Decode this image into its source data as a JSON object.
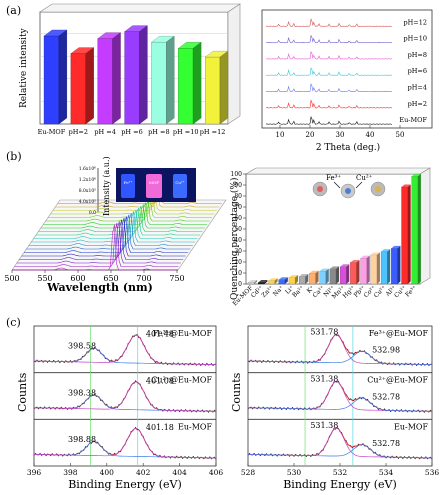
{
  "panels": {
    "a": {
      "label": "(a)",
      "bar": {
        "ylabel": "Relative intensity",
        "categories": [
          "Eu-MOF",
          "pH=2",
          "pH =4",
          "pH =6",
          "pH =8",
          "pH =10",
          "pH =12"
        ],
        "values": [
          1.0,
          0.8,
          0.97,
          1.05,
          0.93,
          0.86,
          0.76
        ],
        "colors": [
          "#2f3fff",
          "#ff2a2a",
          "#c43cff",
          "#9a3cff",
          "#9affe0",
          "#33ff33",
          "#f2f23a"
        ]
      },
      "xrd": {
        "xlabel": "2 Theta (deg.)",
        "xticks": [
          "10",
          "20",
          "30",
          "40",
          "50"
        ],
        "traces": [
          "pH=12",
          "pH=10",
          "pH=8",
          "pH=6",
          "pH=4",
          "pH=2",
          "Eu-MOF"
        ],
        "trace_colors": [
          "#d45555",
          "#6b5fd0",
          "#e85ad4",
          "#39c9d4",
          "#6a78ff",
          "#ff2a2a",
          "#111111"
        ]
      }
    },
    "b": {
      "label": "(b)",
      "spectra": {
        "xlabel": "Wavelength (nm)",
        "xticks": [
          "500",
          "550",
          "600",
          "650",
          "700",
          "750"
        ],
        "zlabel": "Intensity (a.u.)",
        "zticks": [
          "0.0",
          "4.0x10⁵",
          "8.0x10⁵",
          "1.2x10⁶",
          "1.6x10⁶"
        ],
        "inset": [
          "Fe³⁺",
          "MOF",
          "Cu²⁺"
        ]
      },
      "quench": {
        "ylabel": "Quenching percentage (%)",
        "yticks": [
          "0",
          "10",
          "20",
          "30",
          "40",
          "50",
          "60",
          "70",
          "80",
          "90",
          "100"
        ],
        "ylim": [
          0,
          100
        ],
        "categories": [
          "Eu-MOF",
          "Cd²⁺",
          "Zn²⁺",
          "Na⁺",
          "Li⁺",
          "Ba²⁺",
          "K⁺",
          "Ca²⁺",
          "Ni²⁺",
          "Mn²⁺",
          "Hg²⁺",
          "Pb²⁺",
          "Co²⁺",
          "Cu²⁺",
          "Al³⁺",
          "Cu²⁺",
          "Fe³⁺"
        ],
        "values": [
          0,
          1,
          3,
          4,
          6,
          7,
          10,
          12,
          14,
          16,
          20,
          24,
          27,
          30,
          33,
          90,
          100
        ],
        "colors": [
          "#d0d0d0",
          "#222222",
          "#ffd24d",
          "#3b6cff",
          "#ffd24d",
          "#aaaaaa",
          "#ffb070",
          "#7ed0ff",
          "#8a8a8a",
          "#d94fd9",
          "#ff5a5a",
          "#ff9ee6",
          "#ffd0a0",
          "#4dc3ff",
          "#3b5cff",
          "#ff2a2a",
          "#33ee33"
        ],
        "inset": [
          "Fe³⁺",
          "Cu²⁺"
        ]
      }
    },
    "c": {
      "label": "(c)",
      "fe2p": {
        "xlabel": "Binding Energy (eV)",
        "ylabel": "Counts",
        "xticks": [
          "396",
          "398",
          "400",
          "402",
          "404",
          "406"
        ],
        "traces": [
          {
            "name": "Fe³⁺@Eu-MOF",
            "peak1": "398.58",
            "peak2": "401.48"
          },
          {
            "name": "Cu²⁺@Eu-MOF",
            "peak1": "398.38",
            "peak2": "401.08"
          },
          {
            "name": "Eu-MOF",
            "peak1": "398.88",
            "peak2": "401.18"
          }
        ]
      },
      "o1s": {
        "xlabel": "Binding Energy (eV)",
        "ylabel": "Counts",
        "xticks": [
          "528",
          "530",
          "532",
          "534",
          "536"
        ],
        "traces": [
          {
            "name": "Fe³⁺@Eu-MOF",
            "peak1": "531.78",
            "peak2": "532.98"
          },
          {
            "name": "Cu²⁺@Eu-MOF",
            "peak1": "531.38",
            "peak2": "532.78"
          },
          {
            "name": "Eu-MOF",
            "peak1": "531.38",
            "peak2": "532.78"
          }
        ]
      }
    }
  }
}
